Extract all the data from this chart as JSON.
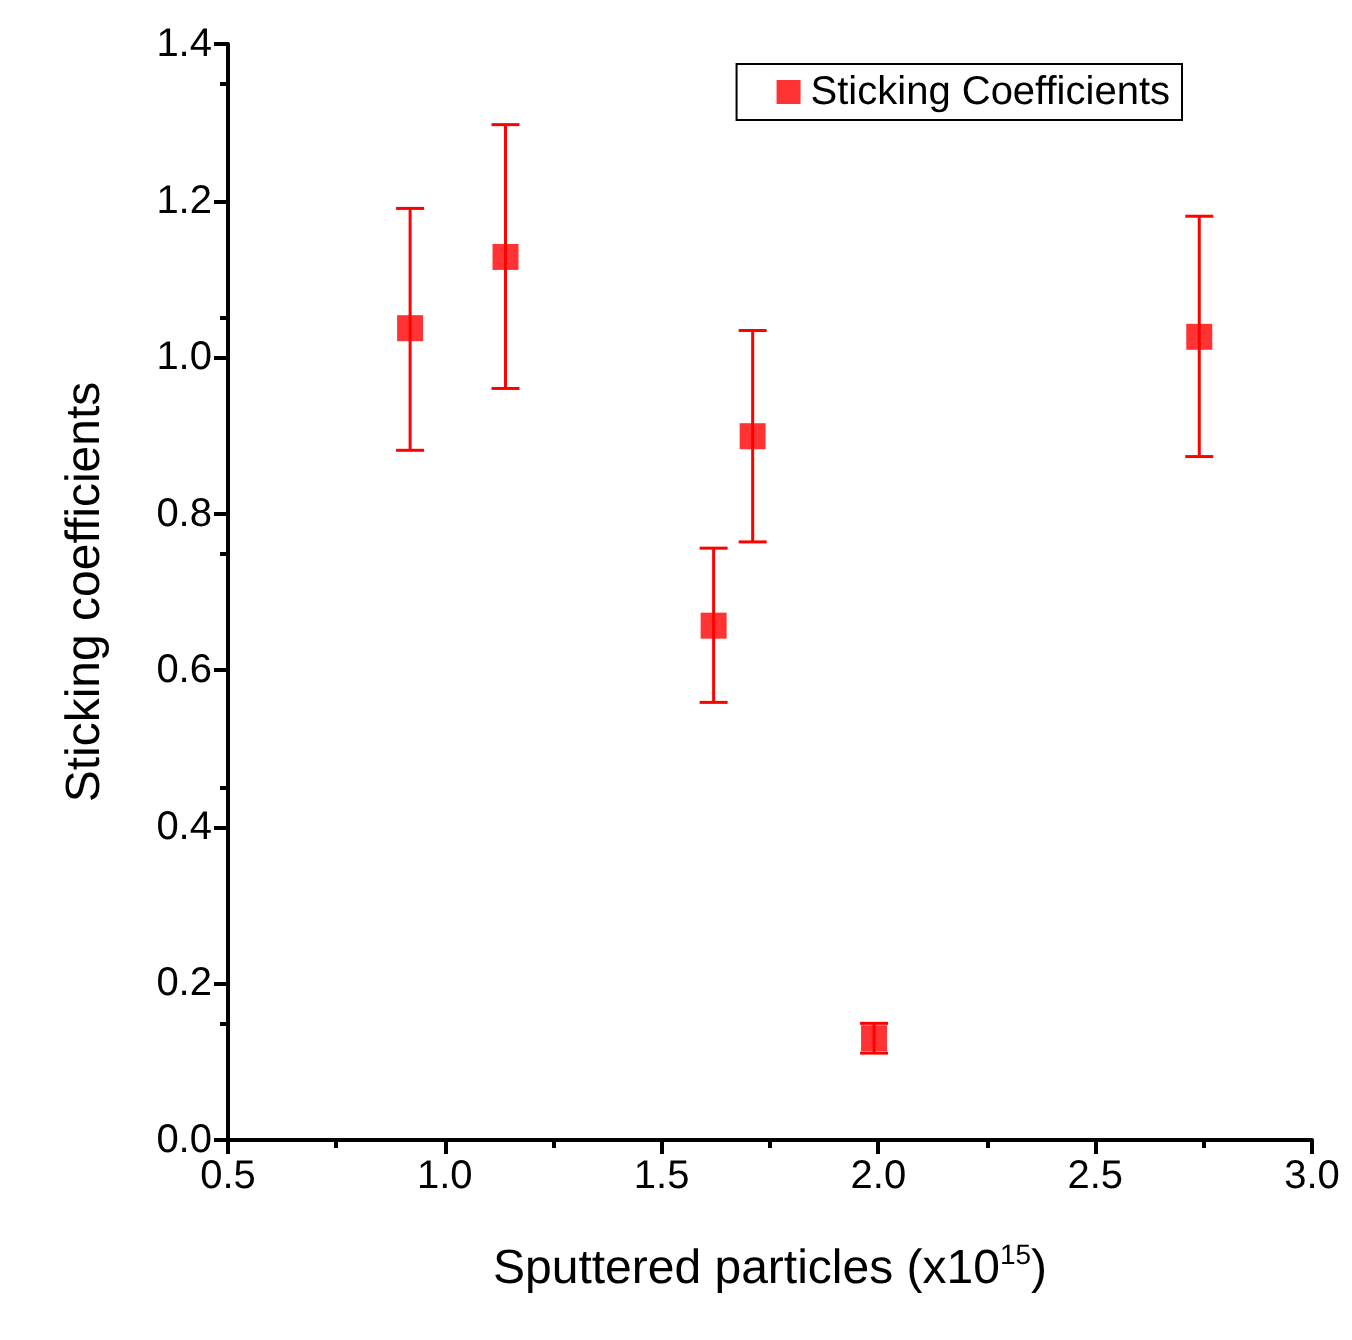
{
  "chart_data": {
    "type": "scatter",
    "xlabel": "Sputtered particles (x10$^{15}$)",
    "ylabel": "Sticking coefficients",
    "x": [
      0.92,
      1.14,
      1.62,
      1.71,
      1.99,
      2.74
    ],
    "series": [
      {
        "name": "Sticking Coefficients",
        "color": "#ff0000",
        "values": [
          1.037,
          1.128,
          0.657,
          0.899,
          0.13,
          1.026
        ],
        "errors": [
          [
            0.881,
            1.19
          ],
          [
            0.96,
            1.297
          ],
          [
            0.559,
            0.756
          ],
          [
            0.764,
            1.034
          ],
          [
            0.111,
            0.149
          ],
          [
            0.873,
            1.18
          ]
        ]
      }
    ],
    "xlim": [
      0.5,
      3.0
    ],
    "xticks": [
      0.5,
      {
        "value": 1,
        "label": "1.0"
      },
      1.5,
      {
        "value": 2,
        "label": "2.0"
      },
      2.5,
      {
        "value": 3,
        "label": "3.0"
      }
    ],
    "ylim": [
      0,
      1.4
    ],
    "yticks": [
      {
        "value": 0,
        "label": "0.0"
      },
      0.2,
      0.4,
      0.6,
      0.8,
      {
        "value": 1,
        "label": "1.0"
      },
      1.2,
      1.4
    ],
    "legend": "top right",
    "marker": "square",
    "grid": false
  }
}
